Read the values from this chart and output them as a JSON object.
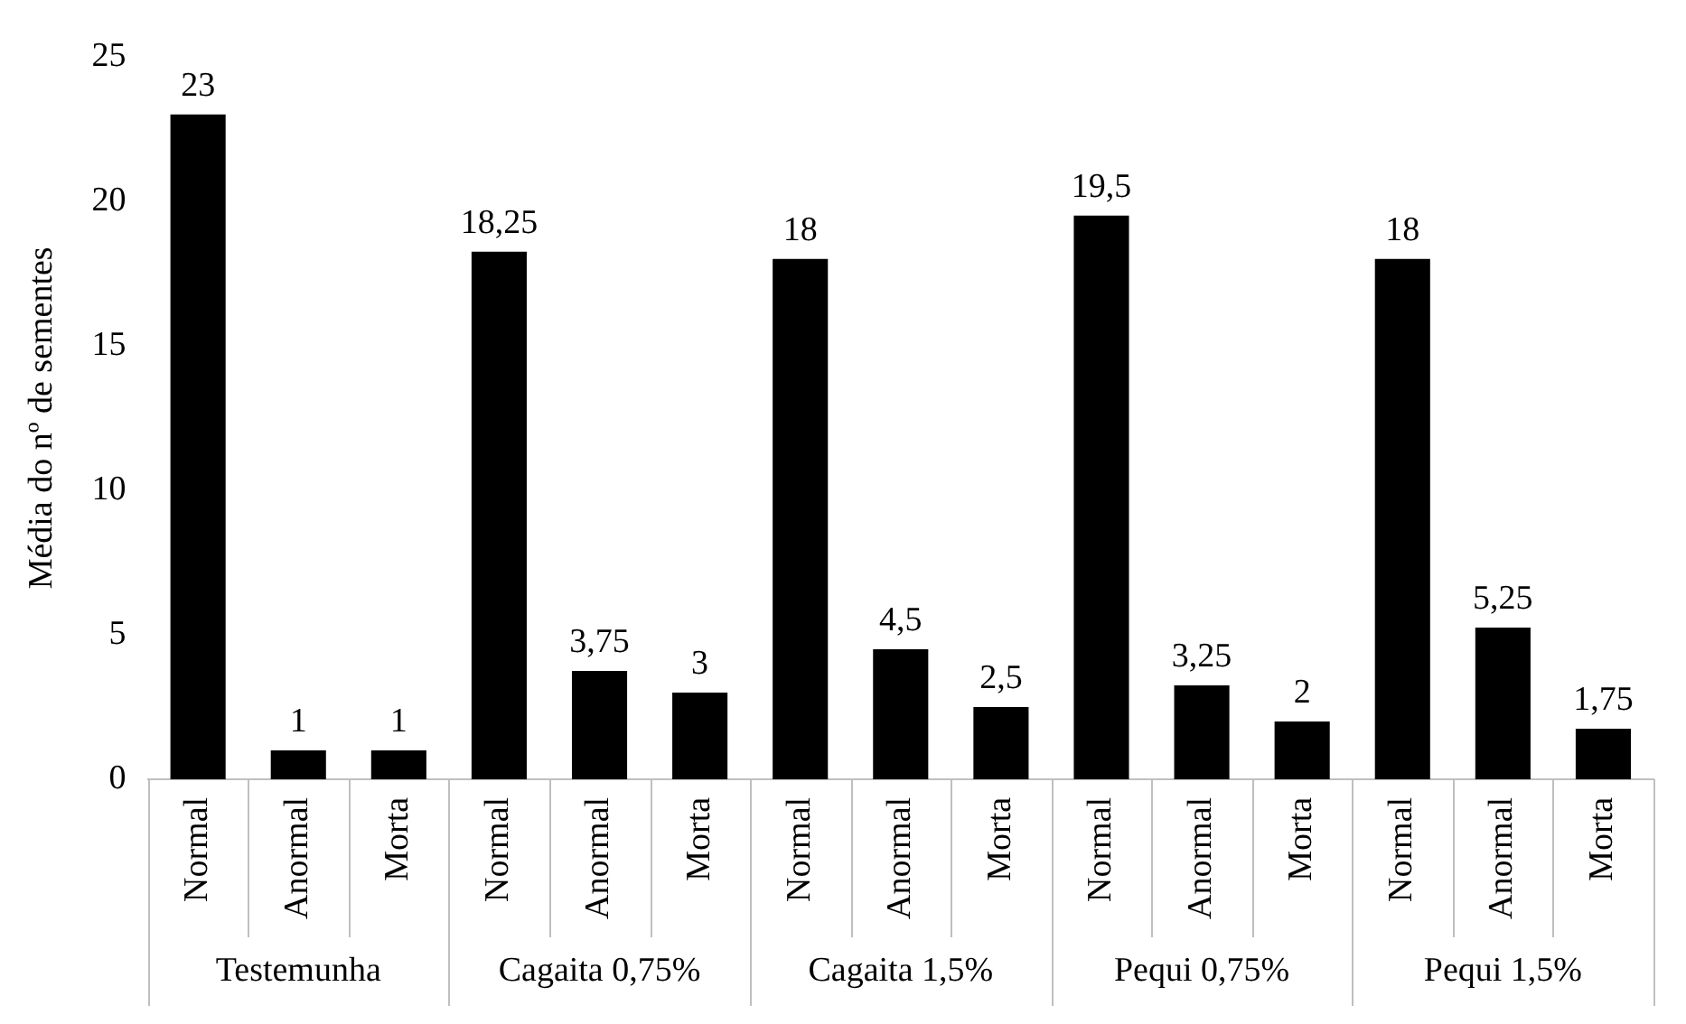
{
  "chart_data": {
    "type": "bar",
    "ylabel": "Média do nº de sementes",
    "categories": [
      "Normal",
      "Anormal",
      "Morta",
      "Normal",
      "Anormal",
      "Morta",
      "Normal",
      "Anormal",
      "Morta",
      "Normal",
      "Anormal",
      "Morta",
      "Normal",
      "Anormal",
      "Morta"
    ],
    "values": [
      23,
      1,
      1,
      18.25,
      3.75,
      3,
      18,
      4.5,
      2.5,
      19.5,
      3.25,
      2,
      18,
      5.25,
      1.75
    ],
    "value_labels": [
      "23",
      "1",
      "1",
      "18,25",
      "3,75",
      "3",
      "18",
      "4,5",
      "2,5",
      "19,5",
      "3,25",
      "2",
      "18",
      "5,25",
      "1,75"
    ],
    "color": "#000000",
    "ylim": [
      0,
      25
    ],
    "yticks": [
      0,
      5,
      10,
      15,
      20,
      25
    ],
    "grid": false,
    "legend": false,
    "annotations": [
      "Testemunha",
      "Cagaita 0,75%",
      "Cagaita 1,5%",
      "Pequi 0,75%",
      "Pequi 1,5%"
    ]
  }
}
